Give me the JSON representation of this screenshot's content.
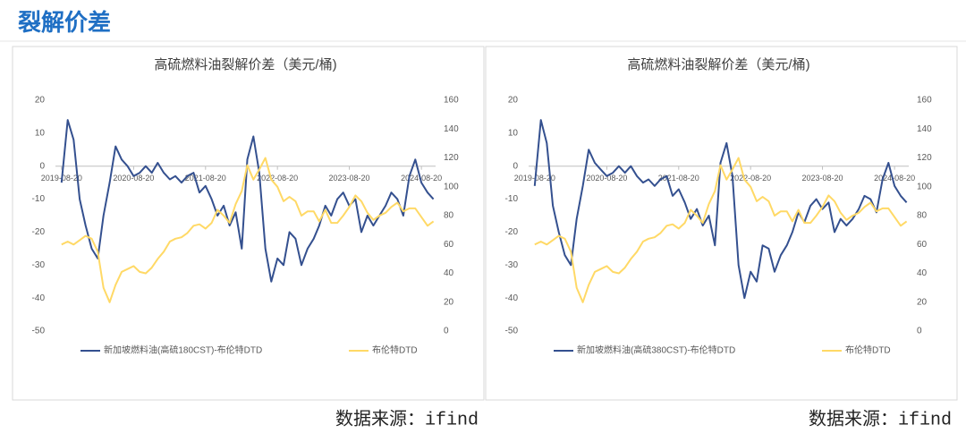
{
  "header": {
    "title": "裂解价差"
  },
  "chart_data": [
    {
      "type": "line",
      "title": "高硫燃料油裂解价差（美元/桶)",
      "source": "数据来源：ifind",
      "x": [
        "2019-08-20",
        "2019-09-20",
        "2019-10-20",
        "2019-11-20",
        "2019-12-20",
        "2020-01-20",
        "2020-02-20",
        "2020-03-20",
        "2020-04-20",
        "2020-05-20",
        "2020-06-20",
        "2020-07-20",
        "2020-08-20",
        "2020-09-20",
        "2020-10-20",
        "2020-11-20",
        "2020-12-20",
        "2021-01-20",
        "2021-02-20",
        "2021-03-20",
        "2021-04-20",
        "2021-05-20",
        "2021-06-20",
        "2021-07-20",
        "2021-08-20",
        "2021-09-20",
        "2021-10-20",
        "2021-11-20",
        "2021-12-20",
        "2022-01-20",
        "2022-02-20",
        "2022-03-20",
        "2022-04-20",
        "2022-05-20",
        "2022-06-20",
        "2022-07-20",
        "2022-08-20",
        "2022-09-20",
        "2022-10-20",
        "2022-11-20",
        "2022-12-20",
        "2023-01-20",
        "2023-02-20",
        "2023-03-20",
        "2023-04-20",
        "2023-05-20",
        "2023-06-20",
        "2023-07-20",
        "2023-08-20",
        "2023-09-20",
        "2023-10-20",
        "2023-11-20",
        "2023-12-20",
        "2024-01-20",
        "2024-02-20",
        "2024-03-20",
        "2024-04-20",
        "2024-05-20",
        "2024-06-20",
        "2024-07-20",
        "2024-08-20",
        "2024-09-20",
        "2024-10-20"
      ],
      "xlim": [
        "2019-07-20",
        "2024-10-31"
      ],
      "xticks": [
        "2019-08-20",
        "2020-08-20",
        "2021-08-20",
        "2022-08-20",
        "2023-08-20",
        "2024-08-20"
      ],
      "ylim": [
        -50,
        20
      ],
      "yticks": [
        -50,
        -40,
        -30,
        -20,
        -10,
        0,
        10,
        20
      ],
      "y2lim": [
        0,
        160
      ],
      "y2ticks": [
        0,
        20,
        40,
        60,
        80,
        100,
        120,
        140,
        160
      ],
      "grid": false,
      "series": [
        {
          "name": "新加坡燃料油(高硫180CST)-布伦特DTD",
          "color": "#34508f",
          "values": [
            -5,
            14,
            8,
            -10,
            -18,
            -25,
            -28,
            -15,
            -5,
            6,
            2,
            0,
            -3,
            -2,
            0,
            -2,
            1,
            -2,
            -4,
            -3,
            -5,
            -3,
            -2,
            -8,
            -6,
            -10,
            -15,
            -12,
            -18,
            -14,
            -25,
            2,
            9,
            -2,
            -25,
            -35,
            -28,
            -30,
            -20,
            -22,
            -30,
            -25,
            -22,
            -18,
            -12,
            -15,
            -10,
            -8,
            -12,
            -10,
            -20,
            -15,
            -18,
            -15,
            -12,
            -8,
            -10,
            -15,
            -3,
            2,
            -5,
            -8,
            -10
          ]
        },
        {
          "name": "布伦特DTD",
          "color": "#ffd966",
          "axis": "y2",
          "values": [
            60,
            62,
            60,
            63,
            66,
            64,
            55,
            30,
            20,
            32,
            41,
            43,
            45,
            41,
            40,
            44,
            50,
            55,
            62,
            64,
            65,
            68,
            73,
            74,
            71,
            75,
            84,
            80,
            75,
            88,
            97,
            115,
            105,
            112,
            120,
            105,
            100,
            90,
            93,
            90,
            80,
            83,
            83,
            76,
            84,
            75,
            75,
            80,
            86,
            94,
            90,
            82,
            77,
            80,
            82,
            86,
            89,
            83,
            85,
            85,
            79,
            73,
            76
          ]
        }
      ]
    },
    {
      "type": "line",
      "title": "高硫燃料油裂解价差（美元/桶)",
      "source": "数据来源：ifind",
      "x": [
        "2019-08-20",
        "2019-09-20",
        "2019-10-20",
        "2019-11-20",
        "2019-12-20",
        "2020-01-20",
        "2020-02-20",
        "2020-03-20",
        "2020-04-20",
        "2020-05-20",
        "2020-06-20",
        "2020-07-20",
        "2020-08-20",
        "2020-09-20",
        "2020-10-20",
        "2020-11-20",
        "2020-12-20",
        "2021-01-20",
        "2021-02-20",
        "2021-03-20",
        "2021-04-20",
        "2021-05-20",
        "2021-06-20",
        "2021-07-20",
        "2021-08-20",
        "2021-09-20",
        "2021-10-20",
        "2021-11-20",
        "2021-12-20",
        "2022-01-20",
        "2022-02-20",
        "2022-03-20",
        "2022-04-20",
        "2022-05-20",
        "2022-06-20",
        "2022-07-20",
        "2022-08-20",
        "2022-09-20",
        "2022-10-20",
        "2022-11-20",
        "2022-12-20",
        "2023-01-20",
        "2023-02-20",
        "2023-03-20",
        "2023-04-20",
        "2023-05-20",
        "2023-06-20",
        "2023-07-20",
        "2023-08-20",
        "2023-09-20",
        "2023-10-20",
        "2023-11-20",
        "2023-12-20",
        "2024-01-20",
        "2024-02-20",
        "2024-03-20",
        "2024-04-20",
        "2024-05-20",
        "2024-06-20",
        "2024-07-20",
        "2024-08-20",
        "2024-09-20",
        "2024-10-20"
      ],
      "xlim": [
        "2019-07-20",
        "2024-10-31"
      ],
      "xticks": [
        "2019-08-20",
        "2020-08-20",
        "2021-08-20",
        "2022-08-20",
        "2023-08-20",
        "2024-08-20"
      ],
      "ylim": [
        -50,
        20
      ],
      "yticks": [
        -50,
        -40,
        -30,
        -20,
        -10,
        0,
        10,
        20
      ],
      "y2lim": [
        0,
        160
      ],
      "y2ticks": [
        0,
        20,
        40,
        60,
        80,
        100,
        120,
        140,
        160
      ],
      "grid": false,
      "series": [
        {
          "name": "新加坡燃料油(高硫380CST)-布伦特DTD",
          "color": "#34508f",
          "values": [
            -6,
            14,
            7,
            -12,
            -20,
            -27,
            -30,
            -16,
            -6,
            5,
            1,
            -1,
            -3,
            -2,
            0,
            -2,
            0,
            -3,
            -5,
            -4,
            -6,
            -4,
            -3,
            -9,
            -7,
            -11,
            -16,
            -13,
            -18,
            -15,
            -24,
            1,
            7,
            -3,
            -30,
            -40,
            -32,
            -35,
            -24,
            -25,
            -32,
            -27,
            -24,
            -20,
            -14,
            -17,
            -12,
            -10,
            -13,
            -11,
            -20,
            -16,
            -18,
            -16,
            -13,
            -9,
            -10,
            -14,
            -4,
            1,
            -6,
            -9,
            -11
          ]
        },
        {
          "name": "布伦特DTD",
          "color": "#ffd966",
          "axis": "y2",
          "values": [
            60,
            62,
            60,
            63,
            66,
            64,
            55,
            30,
            20,
            32,
            41,
            43,
            45,
            41,
            40,
            44,
            50,
            55,
            62,
            64,
            65,
            68,
            73,
            74,
            71,
            75,
            84,
            80,
            75,
            88,
            97,
            115,
            105,
            112,
            120,
            105,
            100,
            90,
            93,
            90,
            80,
            83,
            83,
            76,
            84,
            75,
            75,
            80,
            86,
            94,
            90,
            82,
            77,
            80,
            82,
            86,
            89,
            83,
            85,
            85,
            79,
            73,
            76
          ]
        }
      ]
    }
  ]
}
